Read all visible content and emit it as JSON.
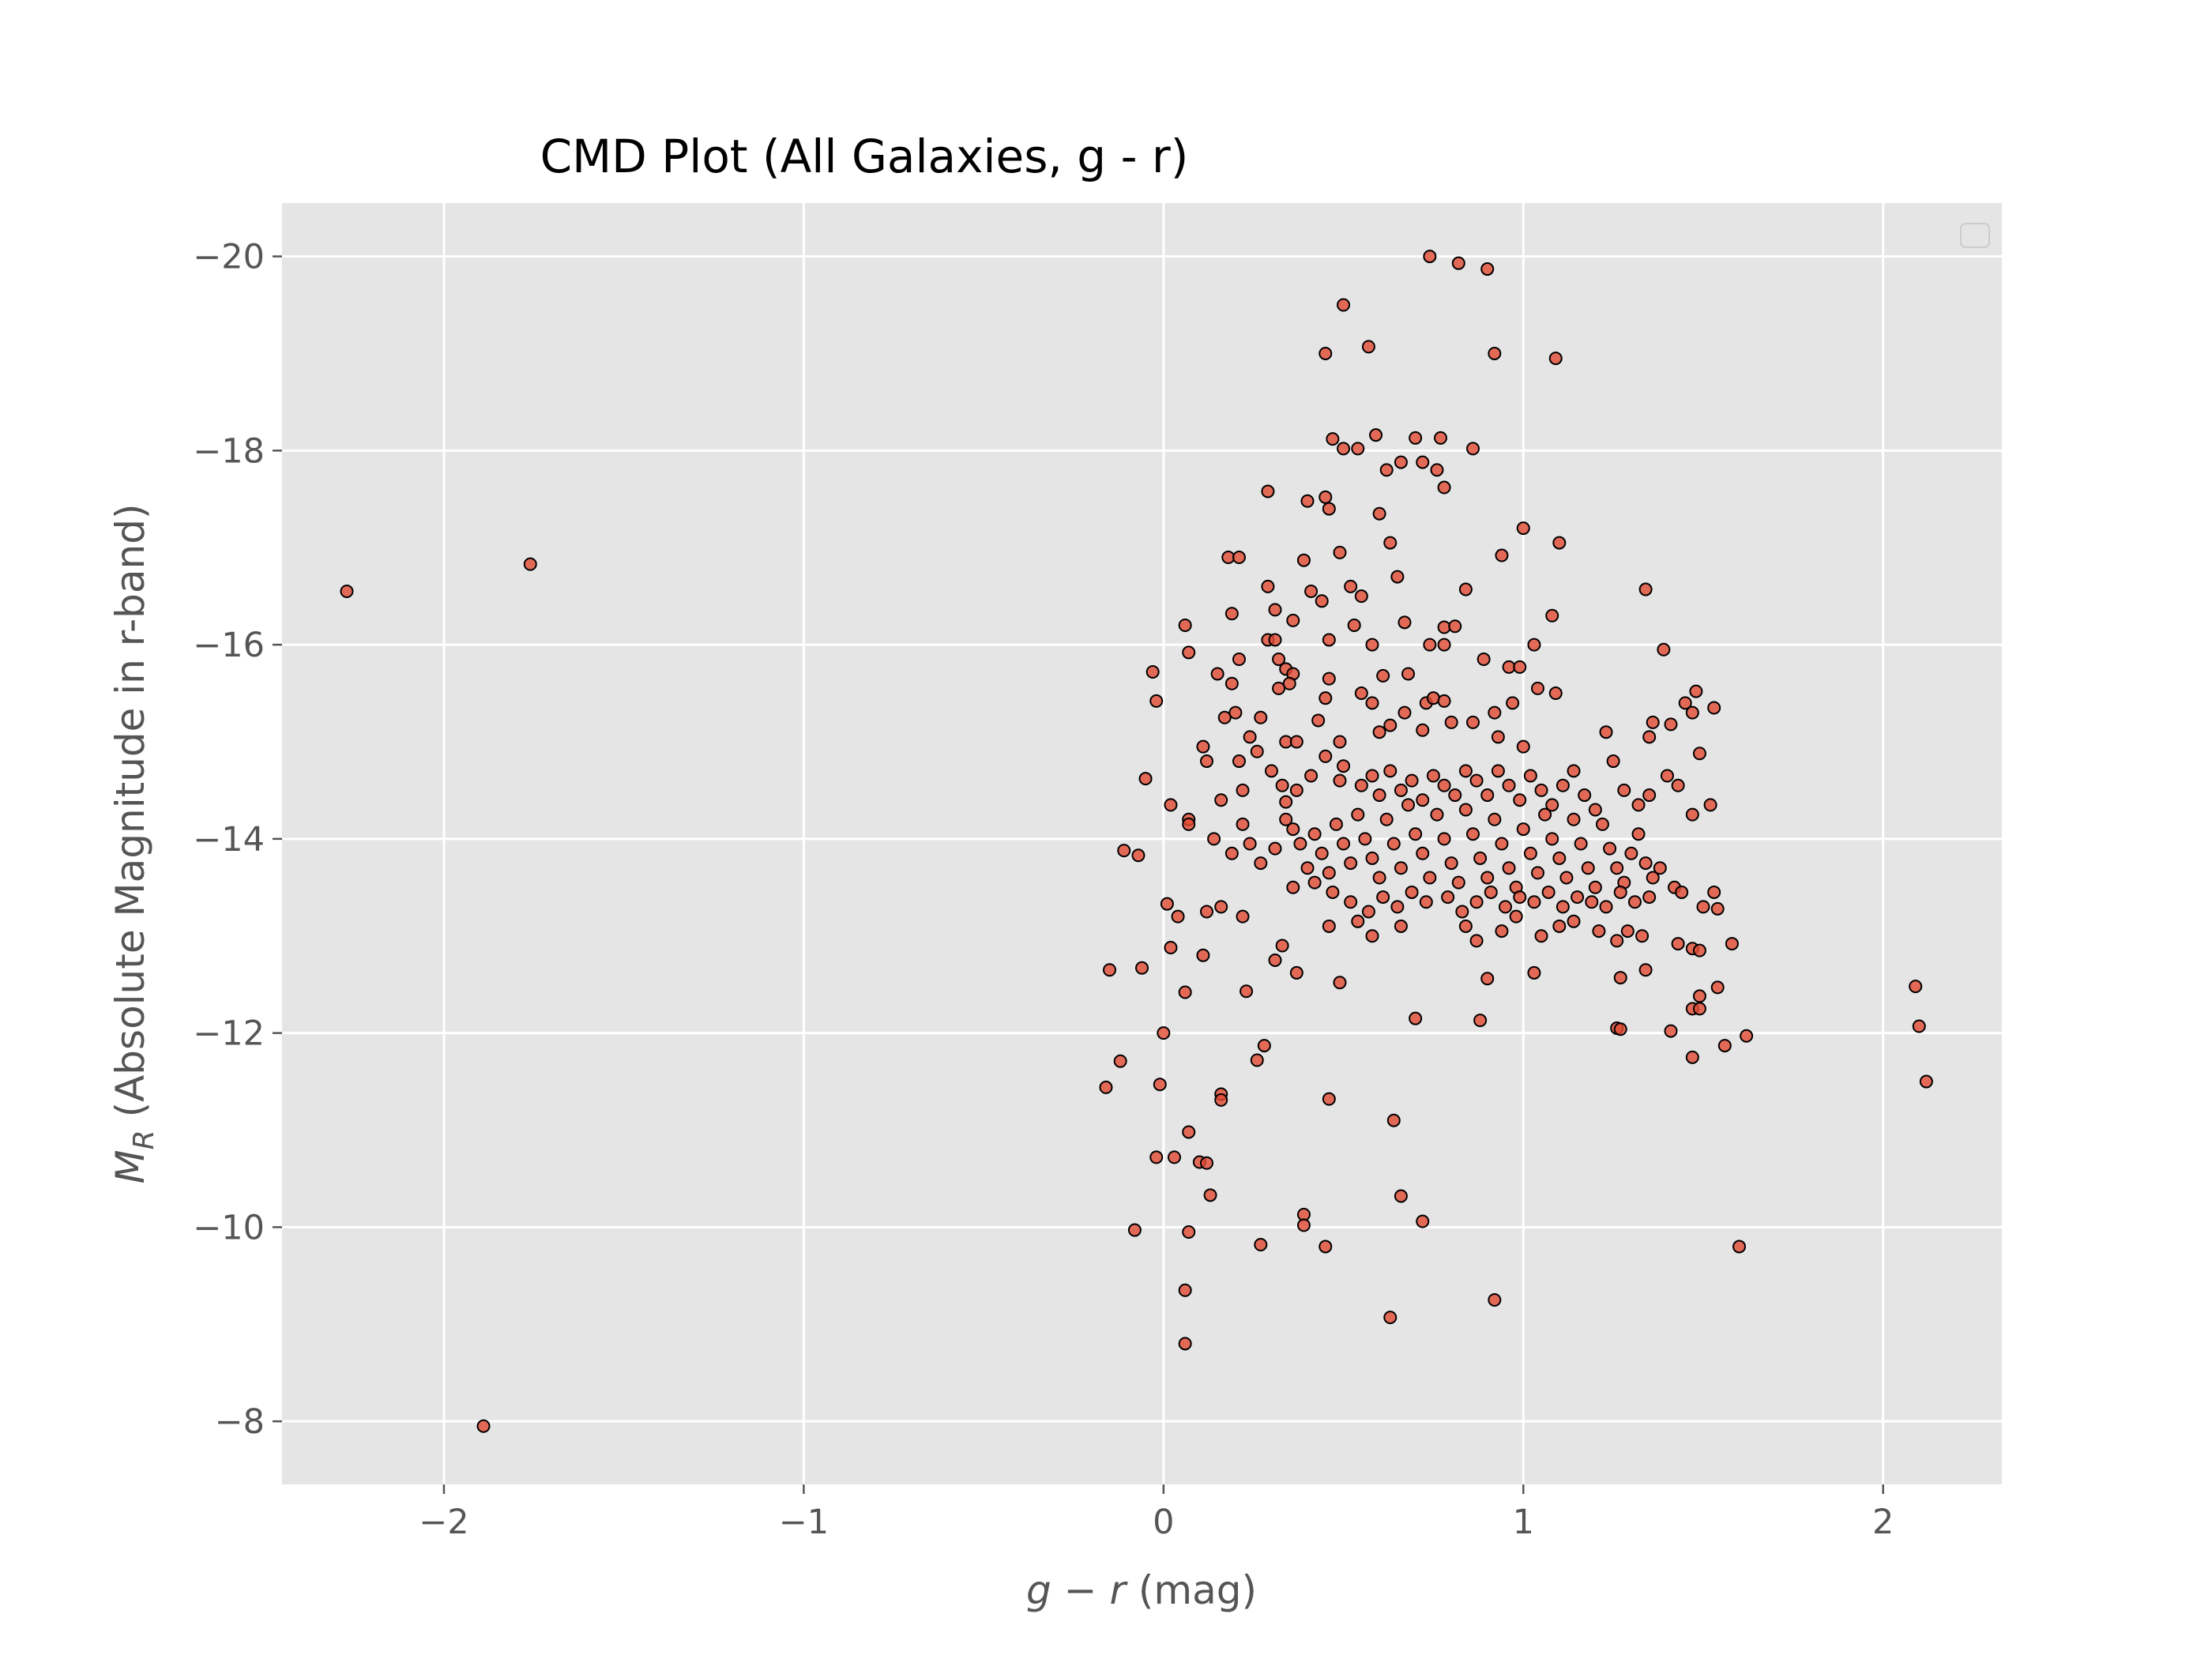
{
  "chart_data": {
    "type": "scatter",
    "title": "CMD Plot (All Galaxies, g - r)",
    "xlabel": "g − r (mag)",
    "ylabel": "M_R (Absolute Magnitude in r-band)",
    "xlim": [
      -2.45,
      2.33
    ],
    "ylim": [
      -7.35,
      -20.55
    ],
    "y_inverted": true,
    "grid": true,
    "legend": "top-right (empty)",
    "x_ticks": [
      -2,
      -1,
      0,
      1,
      2
    ],
    "x_tick_labels": [
      "−2",
      "−1",
      "0",
      "1",
      "2"
    ],
    "y_ticks": [
      -20,
      -18,
      -16,
      -14,
      -12,
      -10,
      -8
    ],
    "y_tick_labels": [
      "−20",
      "−18",
      "−16",
      "−14",
      "−12",
      "−10",
      "−8"
    ],
    "colors": {
      "background": "#e5e5e5",
      "marker_fill": "#e24a33",
      "marker_edge": "#000000",
      "grid": "#ffffff"
    },
    "points": [
      [
        -2.27,
        -16.55
      ],
      [
        -1.76,
        -16.83
      ],
      [
        -1.89,
        -7.95
      ],
      [
        2.09,
        -12.48
      ],
      [
        2.1,
        -12.07
      ],
      [
        2.12,
        -11.5
      ],
      [
        0.74,
        -20.0
      ],
      [
        0.82,
        -19.93
      ],
      [
        0.9,
        -19.87
      ],
      [
        0.5,
        -19.5
      ],
      [
        0.45,
        -19.0
      ],
      [
        0.57,
        -19.07
      ],
      [
        0.92,
        -19.0
      ],
      [
        1.09,
        -18.95
      ],
      [
        0.47,
        -18.12
      ],
      [
        0.5,
        -18.02
      ],
      [
        0.54,
        -18.02
      ],
      [
        0.59,
        -18.16
      ],
      [
        0.7,
        -18.13
      ],
      [
        0.77,
        -18.13
      ],
      [
        0.86,
        -18.02
      ],
      [
        0.72,
        -17.88
      ],
      [
        0.66,
        -17.88
      ],
      [
        0.62,
        -17.8
      ],
      [
        0.76,
        -17.8
      ],
      [
        0.78,
        -17.62
      ],
      [
        0.29,
        -17.58
      ],
      [
        0.4,
        -17.48
      ],
      [
        0.45,
        -17.52
      ],
      [
        0.46,
        -17.4
      ],
      [
        0.6,
        -17.35
      ],
      [
        1.0,
        -17.2
      ],
      [
        1.1,
        -17.05
      ],
      [
        0.63,
        -17.05
      ],
      [
        0.18,
        -16.9
      ],
      [
        0.21,
        -16.9
      ],
      [
        0.39,
        -16.87
      ],
      [
        0.49,
        -16.95
      ],
      [
        0.94,
        -16.92
      ],
      [
        0.65,
        -16.7
      ],
      [
        0.41,
        -16.55
      ],
      [
        0.44,
        -16.45
      ],
      [
        0.52,
        -16.6
      ],
      [
        0.55,
        -16.5
      ],
      [
        0.84,
        -16.57
      ],
      [
        1.34,
        -16.57
      ],
      [
        0.29,
        -16.6
      ],
      [
        0.31,
        -16.36
      ],
      [
        0.19,
        -16.32
      ],
      [
        0.06,
        -16.2
      ],
      [
        0.36,
        -16.25
      ],
      [
        0.53,
        -16.2
      ],
      [
        0.67,
        -16.23
      ],
      [
        0.78,
        -16.18
      ],
      [
        0.81,
        -16.19
      ],
      [
        1.08,
        -16.3
      ],
      [
        0.29,
        -16.05
      ],
      [
        0.31,
        -16.05
      ],
      [
        0.46,
        -16.05
      ],
      [
        0.58,
        -16.0
      ],
      [
        0.74,
        -16.0
      ],
      [
        0.78,
        -16.0
      ],
      [
        1.03,
        -16.0
      ],
      [
        1.39,
        -15.95
      ],
      [
        -0.03,
        -15.72
      ],
      [
        0.07,
        -15.92
      ],
      [
        0.15,
        -15.7
      ],
      [
        0.19,
        -15.6
      ],
      [
        0.21,
        -15.85
      ],
      [
        0.32,
        -15.85
      ],
      [
        0.34,
        -15.75
      ],
      [
        0.36,
        -15.7
      ],
      [
        0.35,
        -15.6
      ],
      [
        0.32,
        -15.55
      ],
      [
        0.46,
        -15.65
      ],
      [
        0.61,
        -15.68
      ],
      [
        0.68,
        -15.7
      ],
      [
        0.89,
        -15.85
      ],
      [
        0.96,
        -15.77
      ],
      [
        0.99,
        -15.77
      ],
      [
        1.04,
        -15.55
      ],
      [
        1.09,
        -15.5
      ],
      [
        1.48,
        -15.52
      ],
      [
        -0.02,
        -15.42
      ],
      [
        0.17,
        -15.25
      ],
      [
        0.2,
        -15.3
      ],
      [
        0.27,
        -15.25
      ],
      [
        0.45,
        -15.45
      ],
      [
        0.55,
        -15.5
      ],
      [
        0.58,
        -15.4
      ],
      [
        0.73,
        -15.4
      ],
      [
        0.75,
        -15.45
      ],
      [
        0.78,
        -15.42
      ],
      [
        0.86,
        -15.2
      ],
      [
        0.92,
        -15.3
      ],
      [
        0.97,
        -15.4
      ],
      [
        1.36,
        -15.2
      ],
      [
        1.41,
        -15.18
      ],
      [
        1.45,
        -15.4
      ],
      [
        1.47,
        -15.3
      ],
      [
        1.53,
        -15.35
      ],
      [
        0.11,
        -14.95
      ],
      [
        0.24,
        -15.05
      ],
      [
        0.34,
        -15.0
      ],
      [
        0.37,
        -15.0
      ],
      [
        0.43,
        -15.22
      ],
      [
        0.49,
        -15.0
      ],
      [
        0.6,
        -15.1
      ],
      [
        0.63,
        -15.17
      ],
      [
        0.67,
        -15.3
      ],
      [
        0.72,
        -15.12
      ],
      [
        0.8,
        -15.2
      ],
      [
        0.93,
        -15.05
      ],
      [
        1.0,
        -14.95
      ],
      [
        1.23,
        -15.1
      ],
      [
        1.35,
        -15.05
      ],
      [
        1.49,
        -14.88
      ],
      [
        -0.05,
        -14.62
      ],
      [
        0.02,
        -14.35
      ],
      [
        0.07,
        -14.2
      ],
      [
        0.07,
        -14.15
      ],
      [
        0.12,
        -14.8
      ],
      [
        0.16,
        -14.4
      ],
      [
        0.21,
        -14.8
      ],
      [
        0.22,
        -14.5
      ],
      [
        0.22,
        -14.15
      ],
      [
        0.26,
        -14.9
      ],
      [
        0.3,
        -14.7
      ],
      [
        0.33,
        -14.55
      ],
      [
        0.34,
        -14.38
      ],
      [
        0.37,
        -14.5
      ],
      [
        0.41,
        -14.65
      ],
      [
        0.45,
        -14.85
      ],
      [
        0.49,
        -14.6
      ],
      [
        0.5,
        -14.75
      ],
      [
        0.55,
        -14.55
      ],
      [
        0.58,
        -14.65
      ],
      [
        0.6,
        -14.45
      ],
      [
        0.63,
        -14.7
      ],
      [
        0.66,
        -14.5
      ],
      [
        0.69,
        -14.6
      ],
      [
        0.72,
        -14.4
      ],
      [
        0.75,
        -14.65
      ],
      [
        0.78,
        -14.55
      ],
      [
        0.81,
        -14.45
      ],
      [
        0.84,
        -14.7
      ],
      [
        0.87,
        -14.6
      ],
      [
        0.9,
        -14.45
      ],
      [
        0.93,
        -14.7
      ],
      [
        0.96,
        -14.55
      ],
      [
        0.99,
        -14.4
      ],
      [
        1.02,
        -14.65
      ],
      [
        1.05,
        -14.5
      ],
      [
        1.08,
        -14.35
      ],
      [
        1.11,
        -14.55
      ],
      [
        1.14,
        -14.7
      ],
      [
        1.17,
        -14.45
      ],
      [
        1.2,
        -14.3
      ],
      [
        1.25,
        -14.8
      ],
      [
        1.28,
        -14.5
      ],
      [
        1.32,
        -14.35
      ],
      [
        1.35,
        -14.45
      ],
      [
        1.4,
        -14.65
      ],
      [
        1.43,
        -14.55
      ],
      [
        1.47,
        -14.25
      ],
      [
        1.52,
        -14.35
      ],
      [
        -0.11,
        -13.88
      ],
      [
        -0.07,
        -13.83
      ],
      [
        0.14,
        -14.0
      ],
      [
        0.19,
        -13.85
      ],
      [
        0.24,
        -13.95
      ],
      [
        0.27,
        -13.75
      ],
      [
        0.31,
        -13.9
      ],
      [
        0.34,
        -14.2
      ],
      [
        0.36,
        -14.1
      ],
      [
        0.38,
        -13.95
      ],
      [
        0.4,
        -13.7
      ],
      [
        0.42,
        -14.05
      ],
      [
        0.44,
        -13.85
      ],
      [
        0.46,
        -13.65
      ],
      [
        0.48,
        -14.15
      ],
      [
        0.5,
        -13.95
      ],
      [
        0.52,
        -13.75
      ],
      [
        0.54,
        -14.25
      ],
      [
        0.56,
        -14.0
      ],
      [
        0.58,
        -13.8
      ],
      [
        0.6,
        -13.6
      ],
      [
        0.62,
        -14.2
      ],
      [
        0.64,
        -13.95
      ],
      [
        0.66,
        -13.7
      ],
      [
        0.68,
        -14.35
      ],
      [
        0.7,
        -14.05
      ],
      [
        0.72,
        -13.85
      ],
      [
        0.74,
        -13.6
      ],
      [
        0.76,
        -14.25
      ],
      [
        0.78,
        -14.0
      ],
      [
        0.8,
        -13.75
      ],
      [
        0.82,
        -13.55
      ],
      [
        0.84,
        -14.3
      ],
      [
        0.86,
        -14.05
      ],
      [
        0.88,
        -13.8
      ],
      [
        0.9,
        -13.6
      ],
      [
        0.92,
        -14.2
      ],
      [
        0.94,
        -13.95
      ],
      [
        0.96,
        -13.7
      ],
      [
        0.98,
        -13.5
      ],
      [
        1.0,
        -14.1
      ],
      [
        1.02,
        -13.85
      ],
      [
        1.04,
        -13.65
      ],
      [
        1.06,
        -14.25
      ],
      [
        1.08,
        -14.0
      ],
      [
        1.1,
        -13.8
      ],
      [
        1.12,
        -13.6
      ],
      [
        1.14,
        -14.2
      ],
      [
        1.16,
        -13.95
      ],
      [
        1.18,
        -13.7
      ],
      [
        1.2,
        -13.5
      ],
      [
        1.22,
        -14.15
      ],
      [
        1.24,
        -13.9
      ],
      [
        1.26,
        -13.7
      ],
      [
        1.28,
        -13.55
      ],
      [
        1.3,
        -13.85
      ],
      [
        1.32,
        -14.05
      ],
      [
        1.34,
        -13.75
      ],
      [
        1.36,
        -13.6
      ],
      [
        1.38,
        -13.7
      ],
      [
        1.42,
        -13.5
      ],
      [
        0.01,
        -13.33
      ],
      [
        0.04,
        -13.2
      ],
      [
        0.12,
        -13.25
      ],
      [
        0.16,
        -13.3
      ],
      [
        0.22,
        -13.2
      ],
      [
        0.36,
        -13.5
      ],
      [
        0.42,
        -13.55
      ],
      [
        0.47,
        -13.45
      ],
      [
        0.52,
        -13.35
      ],
      [
        0.57,
        -13.25
      ],
      [
        0.61,
        -13.4
      ],
      [
        0.65,
        -13.3
      ],
      [
        0.69,
        -13.45
      ],
      [
        0.73,
        -13.35
      ],
      [
        0.79,
        -13.4
      ],
      [
        0.83,
        -13.25
      ],
      [
        0.87,
        -13.35
      ],
      [
        0.91,
        -13.45
      ],
      [
        0.95,
        -13.3
      ],
      [
        0.99,
        -13.4
      ],
      [
        1.03,
        -13.35
      ],
      [
        1.07,
        -13.45
      ],
      [
        1.11,
        -13.3
      ],
      [
        1.15,
        -13.4
      ],
      [
        1.19,
        -13.35
      ],
      [
        1.23,
        -13.3
      ],
      [
        1.27,
        -13.45
      ],
      [
        1.31,
        -13.35
      ],
      [
        1.35,
        -13.4
      ],
      [
        1.44,
        -13.45
      ],
      [
        1.5,
        -13.3
      ],
      [
        1.53,
        -13.45
      ],
      [
        1.54,
        -13.28
      ],
      [
        0.46,
        -13.1
      ],
      [
        0.54,
        -13.15
      ],
      [
        0.58,
        -13.0
      ],
      [
        0.66,
        -13.1
      ],
      [
        0.84,
        -13.1
      ],
      [
        0.87,
        -12.95
      ],
      [
        0.94,
        -13.05
      ],
      [
        0.98,
        -13.2
      ],
      [
        1.05,
        -13.0
      ],
      [
        1.1,
        -13.1
      ],
      [
        1.14,
        -13.15
      ],
      [
        1.21,
        -13.05
      ],
      [
        1.26,
        -12.95
      ],
      [
        1.29,
        -13.05
      ],
      [
        1.33,
        -13.0
      ],
      [
        1.43,
        -12.92
      ],
      [
        1.47,
        -12.87
      ],
      [
        1.49,
        -12.85
      ],
      [
        1.58,
        -12.92
      ],
      [
        -0.15,
        -12.65
      ],
      [
        -0.06,
        -12.67
      ],
      [
        0.02,
        -12.88
      ],
      [
        0.11,
        -12.8
      ],
      [
        0.31,
        -12.75
      ],
      [
        0.33,
        -12.9
      ],
      [
        0.37,
        -12.62
      ],
      [
        0.49,
        -12.52
      ],
      [
        0.9,
        -12.56
      ],
      [
        1.03,
        -12.62
      ],
      [
        1.27,
        -12.57
      ],
      [
        1.34,
        -12.65
      ],
      [
        1.49,
        -12.38
      ],
      [
        1.47,
        -12.25
      ],
      [
        1.49,
        -12.25
      ],
      [
        1.54,
        -12.47
      ],
      [
        0.06,
        -12.42
      ],
      [
        0.23,
        -12.43
      ],
      [
        0.0,
        -12.0
      ],
      [
        0.7,
        -12.15
      ],
      [
        0.88,
        -12.13
      ],
      [
        1.26,
        -12.05
      ],
      [
        1.27,
        -12.04
      ],
      [
        1.41,
        -12.02
      ],
      [
        1.47,
        -11.75
      ],
      [
        1.56,
        -11.87
      ],
      [
        1.62,
        -11.97
      ],
      [
        0.26,
        -11.72
      ],
      [
        0.28,
        -11.87
      ],
      [
        -0.12,
        -11.71
      ],
      [
        -0.16,
        -11.44
      ],
      [
        -0.01,
        -11.47
      ],
      [
        0.16,
        -11.37
      ],
      [
        0.16,
        -11.31
      ],
      [
        0.46,
        -11.32
      ],
      [
        0.64,
        -11.1
      ],
      [
        0.07,
        -10.98
      ],
      [
        -0.02,
        -10.72
      ],
      [
        0.03,
        -10.72
      ],
      [
        0.1,
        -10.67
      ],
      [
        0.12,
        -10.66
      ],
      [
        0.13,
        -10.33
      ],
      [
        0.66,
        -10.32
      ],
      [
        -0.08,
        -9.97
      ],
      [
        0.07,
        -9.95
      ],
      [
        0.39,
        -10.13
      ],
      [
        0.39,
        -10.02
      ],
      [
        0.72,
        -10.06
      ],
      [
        0.27,
        -9.82
      ],
      [
        0.45,
        -9.8
      ],
      [
        1.6,
        -9.8
      ],
      [
        0.06,
        -9.35
      ],
      [
        0.92,
        -9.25
      ],
      [
        0.63,
        -9.07
      ],
      [
        0.06,
        -8.8
      ]
    ]
  }
}
